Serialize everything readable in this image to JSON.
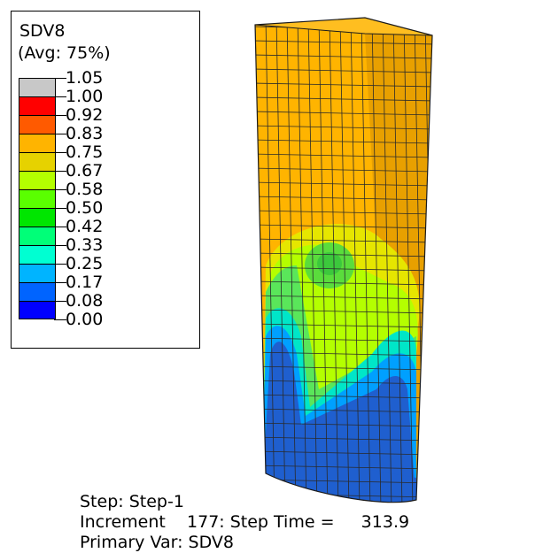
{
  "legend": {
    "title": "SDV8",
    "subtitle": "(Avg: 75%)",
    "levels": [
      {
        "label": "1.05",
        "color": "#c8c8c8"
      },
      {
        "label": "1.00",
        "color": "#ff0000"
      },
      {
        "label": "0.92",
        "color": "#ff5a00"
      },
      {
        "label": "0.83",
        "color": "#ffb400"
      },
      {
        "label": "0.75",
        "color": "#e6d200"
      },
      {
        "label": "0.67",
        "color": "#b4ff00"
      },
      {
        "label": "0.58",
        "color": "#5aff00"
      },
      {
        "label": "0.50",
        "color": "#00e600"
      },
      {
        "label": "0.42",
        "color": "#00ff78"
      },
      {
        "label": "0.33",
        "color": "#00ffd2"
      },
      {
        "label": "0.25",
        "color": "#00b4ff"
      },
      {
        "label": "0.17",
        "color": "#0064ff"
      },
      {
        "label": "0.08",
        "color": "#1f5fcf"
      },
      {
        "label": "0.00",
        "color": "#0000ff"
      }
    ]
  },
  "info": {
    "step": "Step: Step-1",
    "increment": "Increment    177: Step Time =     313.9",
    "primary_var": "Primary Var: SDV8"
  }
}
